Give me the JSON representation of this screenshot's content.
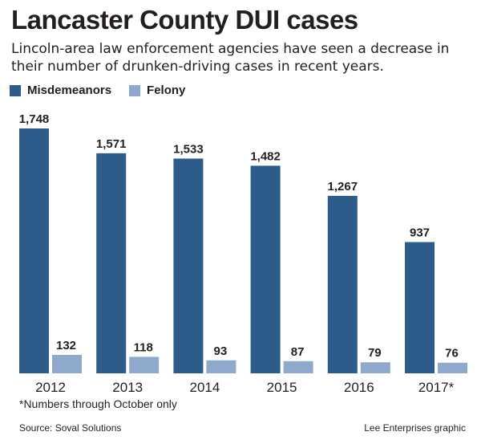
{
  "title": "Lancaster County DUI cases",
  "subtitle": "Lincoln-area law enforcement agencies have seen a decrease in their number of drunken-driving cases in recent years.",
  "note": "*Numbers through October only",
  "source": "Source: Soval Solutions",
  "credit": "Lee Enterprises graphic",
  "colors": {
    "misdemeanors": "#2e5c8a",
    "felony": "#8ea9cc",
    "text": "#231f20"
  },
  "chart_data": {
    "type": "bar",
    "categories": [
      "2012",
      "2013",
      "2014",
      "2015",
      "2016",
      "2017*"
    ],
    "series": [
      {
        "name": "Misdemeanors",
        "values": [
          1748,
          1571,
          1533,
          1482,
          1267,
          937
        ],
        "labels": [
          "1,748",
          "1,571",
          "1,533",
          "1,482",
          "1,267",
          "937"
        ]
      },
      {
        "name": "Felony",
        "values": [
          132,
          118,
          93,
          87,
          79,
          76
        ],
        "labels": [
          "132",
          "118",
          "93",
          "87",
          "79",
          "76"
        ]
      }
    ],
    "ylim": [
      0,
      1748
    ],
    "grid": false,
    "legend": "top-left"
  }
}
